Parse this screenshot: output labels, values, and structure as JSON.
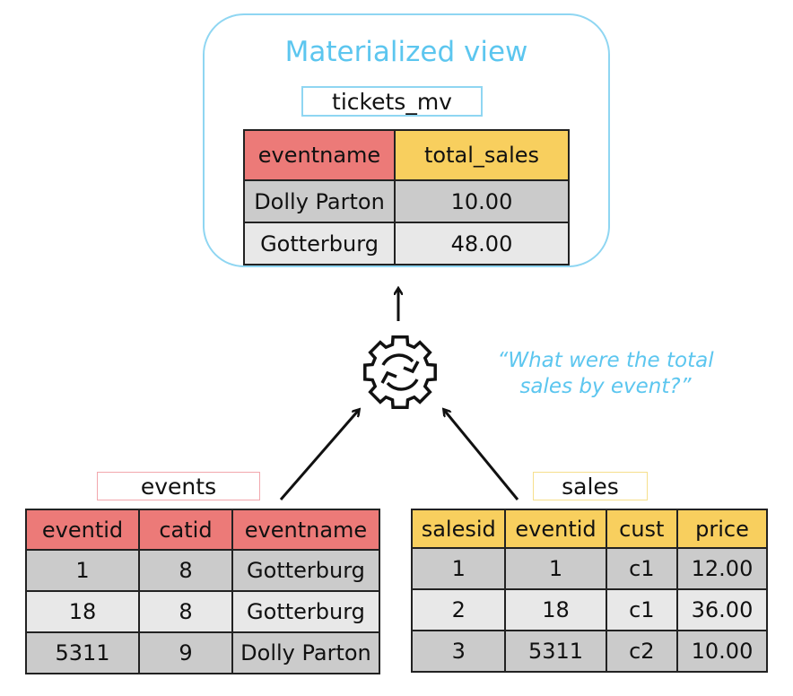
{
  "colors": {
    "accent_blue": "#5cc6ef",
    "header_red": "#ec7a78",
    "header_yellow": "#f8cf5e",
    "row_dark": "#cbcbcb",
    "row_light": "#e8e8e8"
  },
  "materialized_view": {
    "title": "Materialized view",
    "name": "tickets_mv",
    "columns": [
      "eventname",
      "total_sales"
    ],
    "header_colors": [
      "#ec7a78",
      "#f8cf5e"
    ],
    "rows": [
      [
        "Dolly Parton",
        "10.00"
      ],
      [
        "Gotterburg",
        "48.00"
      ]
    ]
  },
  "process_icon": "gear-refresh-icon",
  "question": {
    "line1": "“What were the total",
    "line2": "sales by event?”"
  },
  "events": {
    "name": "events",
    "columns": [
      "eventid",
      "catid",
      "eventname"
    ],
    "header_colors": [
      "#ec7a78",
      "#ec7a78",
      "#ec7a78"
    ],
    "rows": [
      [
        "1",
        "8",
        "Gotterburg"
      ],
      [
        "18",
        "8",
        "Gotterburg"
      ],
      [
        "5311",
        "9",
        "Dolly Parton"
      ]
    ]
  },
  "sales": {
    "name": "sales",
    "columns": [
      "salesid",
      "eventid",
      "cust",
      "price"
    ],
    "header_colors": [
      "#f8cf5e",
      "#f8cf5e",
      "#f8cf5e",
      "#f8cf5e"
    ],
    "rows": [
      [
        "1",
        "1",
        "c1",
        "12.00"
      ],
      [
        "2",
        "18",
        "c1",
        "36.00"
      ],
      [
        "3",
        "5311",
        "c2",
        "10.00"
      ]
    ]
  }
}
